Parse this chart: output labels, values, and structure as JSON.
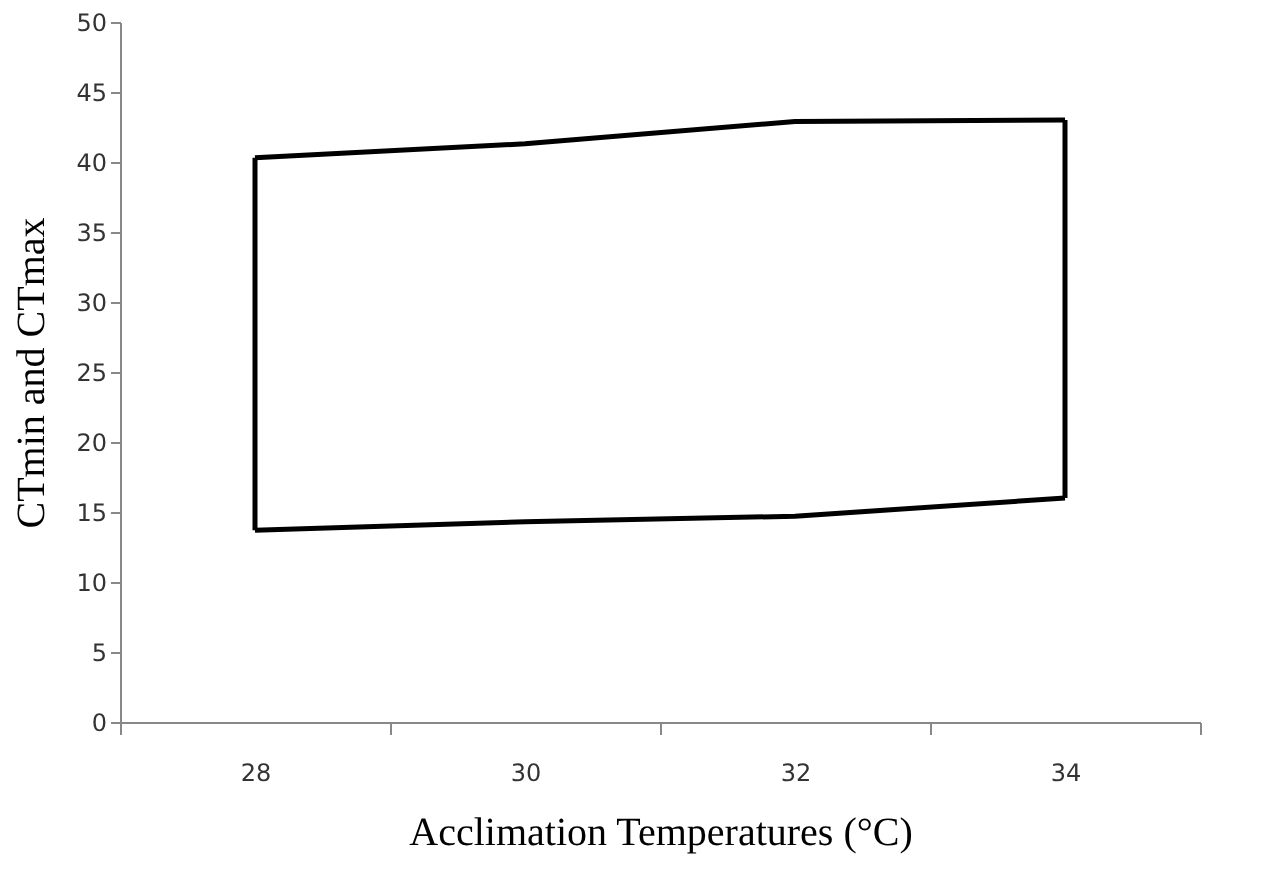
{
  "chart_data": {
    "type": "line",
    "xlabel": "Acclimation  Temperatures (°C)",
    "ylabel": "CTmin  and CTmax",
    "categories": [
      "28",
      "30",
      "32",
      "34"
    ],
    "series": [
      {
        "color": "#000000",
        "values": [
          40.3,
          41.3,
          42.9,
          43.0
        ]
      },
      {
        "color": "#000000",
        "values": [
          13.7,
          14.3,
          14.7,
          16.0
        ]
      },
      {
        "color": "#000000",
        "x": [
          "28",
          "28"
        ],
        "values": [
          13.7,
          40.3
        ]
      },
      {
        "color": "#000000",
        "x": [
          "34",
          "34"
        ],
        "values": [
          16.0,
          43.0
        ]
      }
    ],
    "ylim": [
      0,
      50
    ],
    "yticks": [
      0,
      5,
      10,
      15,
      20,
      25,
      30,
      35,
      40,
      45,
      50
    ],
    "grid": false,
    "marker": "none",
    "line_style": "solid"
  }
}
